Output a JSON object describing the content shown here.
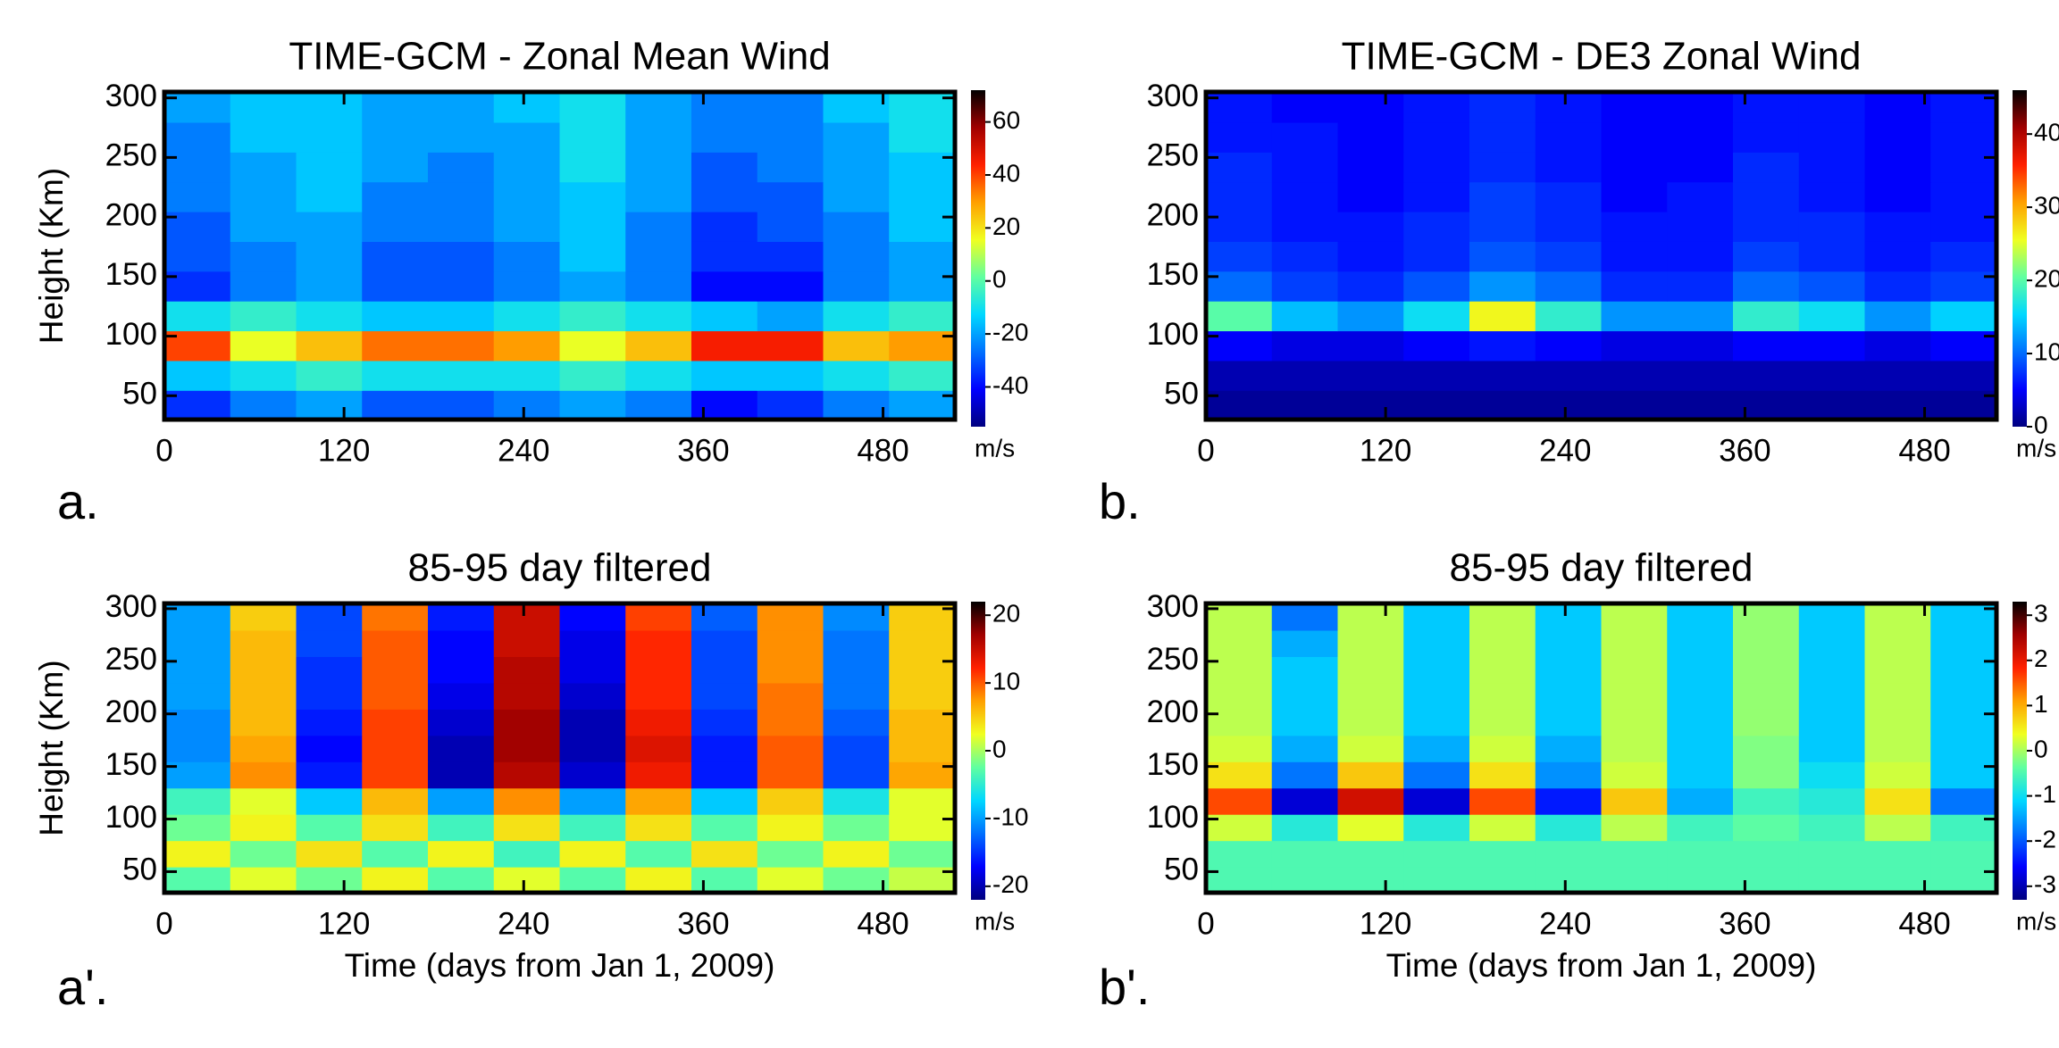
{
  "colormap": [
    "#00007f",
    "#0000ff",
    "#0070ff",
    "#00d8ff",
    "#60ffa0",
    "#f0ff20",
    "#ffa000",
    "#ff2000",
    "#a00000",
    "#000000"
  ],
  "chart_data": [
    {
      "type": "heatmap",
      "title": "TIME-GCM - Zonal Mean Wind",
      "panel_label": "a.",
      "ylabel": "Height (Km)",
      "colorbar_label": "m/s",
      "x": [
        22,
        66,
        110,
        154,
        198,
        242,
        286,
        330,
        374,
        418,
        462,
        506
      ],
      "y": [
        42,
        67,
        92,
        117,
        142,
        167,
        192,
        217,
        242,
        267,
        292
      ],
      "z": [
        [
          -35,
          -25,
          -20,
          -30,
          -30,
          -25,
          -20,
          -25,
          -40,
          -35,
          -25,
          -20
        ],
        [
          -15,
          -10,
          -5,
          -10,
          -10,
          -10,
          -5,
          -10,
          -15,
          -15,
          -10,
          -5
        ],
        [
          40,
          15,
          25,
          35,
          35,
          30,
          15,
          25,
          45,
          45,
          25,
          30
        ],
        [
          -10,
          -5,
          -10,
          -15,
          -15,
          -10,
          -5,
          -10,
          -15,
          -20,
          -10,
          -5
        ],
        [
          -35,
          -25,
          -20,
          -30,
          -30,
          -25,
          -20,
          -25,
          -40,
          -40,
          -25,
          -20
        ],
        [
          -30,
          -25,
          -20,
          -30,
          -30,
          -25,
          -15,
          -25,
          -35,
          -35,
          -25,
          -20
        ],
        [
          -30,
          -20,
          -20,
          -25,
          -25,
          -20,
          -15,
          -25,
          -35,
          -30,
          -25,
          -15
        ],
        [
          -25,
          -20,
          -15,
          -25,
          -25,
          -20,
          -15,
          -20,
          -30,
          -30,
          -20,
          -15
        ],
        [
          -25,
          -20,
          -15,
          -20,
          -25,
          -20,
          -10,
          -20,
          -30,
          -25,
          -20,
          -15
        ],
        [
          -25,
          -15,
          -15,
          -20,
          -20,
          -20,
          -10,
          -20,
          -25,
          -25,
          -20,
          -10
        ],
        [
          -20,
          -15,
          -15,
          -20,
          -20,
          -15,
          -10,
          -20,
          -25,
          -25,
          -15,
          -10
        ]
      ],
      "xlim": [
        0,
        528
      ],
      "ylim": [
        30,
        305
      ],
      "xticks": [
        0,
        120,
        240,
        360,
        480
      ],
      "yticks": [
        50,
        100,
        150,
        200,
        250,
        300
      ],
      "zlim": [
        -55,
        72
      ],
      "zticks": [
        60,
        40,
        20,
        0,
        -20,
        -40
      ]
    },
    {
      "type": "heatmap",
      "title": "TIME-GCM - DE3 Zonal Wind",
      "panel_label": "b.",
      "colorbar_label": "m/s",
      "x": [
        22,
        66,
        110,
        154,
        198,
        242,
        286,
        330,
        374,
        418,
        462,
        506
      ],
      "y": [
        42,
        67,
        92,
        117,
        142,
        167,
        192,
        217,
        242,
        267,
        292
      ],
      "z": [
        [
          1,
          1,
          1,
          1,
          1,
          1,
          1,
          1,
          1,
          1,
          1,
          1
        ],
        [
          2,
          2,
          2,
          2,
          2,
          2,
          2,
          2,
          2,
          2,
          2,
          2
        ],
        [
          5,
          4,
          4,
          5,
          6,
          5,
          4,
          4,
          5,
          5,
          4,
          5
        ],
        [
          20,
          14,
          12,
          16,
          26,
          18,
          12,
          12,
          18,
          16,
          12,
          15
        ],
        [
          10,
          8,
          7,
          9,
          12,
          10,
          7,
          7,
          10,
          9,
          7,
          8
        ],
        [
          8,
          7,
          6,
          7,
          9,
          8,
          6,
          6,
          8,
          7,
          6,
          7
        ],
        [
          7,
          6,
          6,
          7,
          8,
          7,
          6,
          6,
          7,
          7,
          6,
          6
        ],
        [
          7,
          6,
          5,
          6,
          8,
          7,
          5,
          6,
          7,
          6,
          5,
          6
        ],
        [
          7,
          6,
          5,
          6,
          7,
          6,
          5,
          5,
          7,
          6,
          5,
          6
        ],
        [
          6,
          6,
          5,
          6,
          7,
          6,
          5,
          5,
          6,
          6,
          5,
          6
        ],
        [
          6,
          5,
          5,
          6,
          7,
          6,
          5,
          5,
          6,
          6,
          5,
          6
        ]
      ],
      "xlim": [
        0,
        528
      ],
      "ylim": [
        30,
        305
      ],
      "xticks": [
        0,
        120,
        240,
        360,
        480
      ],
      "yticks": [
        50,
        100,
        150,
        200,
        250,
        300
      ],
      "zlim": [
        0,
        46
      ],
      "zticks": [
        40,
        30,
        20,
        10,
        0
      ]
    },
    {
      "type": "heatmap",
      "title": "85-95 day filtered",
      "panel_label": "a'.",
      "ylabel": "Height (Km)",
      "xlabel": "Time (days from Jan 1, 2009)",
      "colorbar_label": "m/s",
      "x": [
        22,
        66,
        110,
        154,
        198,
        242,
        286,
        330,
        374,
        418,
        462,
        506
      ],
      "y": [
        42,
        67,
        92,
        117,
        142,
        167,
        192,
        217,
        242,
        267,
        292
      ],
      "z": [
        [
          -3,
          2,
          -2,
          3,
          -3,
          2,
          -3,
          3,
          -3,
          2,
          -2,
          1
        ],
        [
          3,
          -2,
          4,
          -3,
          3,
          -4,
          3,
          -3,
          4,
          -2,
          3,
          -2
        ],
        [
          -2,
          3,
          -3,
          4,
          -4,
          4,
          -4,
          4,
          -3,
          3,
          -2,
          2
        ],
        [
          -4,
          2,
          -8,
          6,
          -10,
          8,
          -10,
          7,
          -8,
          5,
          -6,
          2
        ],
        [
          -10,
          8,
          -16,
          11,
          -20,
          16,
          -19,
          13,
          -16,
          10,
          -14,
          7
        ],
        [
          -11,
          7,
          -17,
          11,
          -20,
          17,
          -20,
          14,
          -16,
          10,
          -14,
          6
        ],
        [
          -11,
          6,
          -16,
          11,
          -19,
          17,
          -20,
          13,
          -15,
          9,
          -13,
          6
        ],
        [
          -10,
          6,
          -15,
          10,
          -18,
          16,
          -19,
          12,
          -14,
          9,
          -12,
          5
        ],
        [
          -10,
          6,
          -15,
          10,
          -17,
          16,
          -18,
          12,
          -14,
          8,
          -12,
          5
        ],
        [
          -10,
          6,
          -14,
          10,
          -17,
          15,
          -18,
          12,
          -14,
          8,
          -12,
          5
        ],
        [
          -10,
          5,
          -14,
          9,
          -16,
          15,
          -17,
          11,
          -13,
          8,
          -11,
          5
        ]
      ],
      "xlim": [
        0,
        528
      ],
      "ylim": [
        30,
        305
      ],
      "xticks": [
        0,
        120,
        240,
        360,
        480
      ],
      "yticks": [
        50,
        100,
        150,
        200,
        250,
        300
      ],
      "zlim": [
        -22,
        22
      ],
      "zticks": [
        20,
        10,
        0,
        -10,
        -20
      ]
    },
    {
      "type": "heatmap",
      "title": "85-95 day filtered",
      "panel_label": "b'.",
      "xlabel": "Time (days from Jan 1, 2009)",
      "colorbar_label": "m/s",
      "x": [
        22,
        66,
        110,
        154,
        198,
        242,
        286,
        330,
        374,
        418,
        462,
        506
      ],
      "y": [
        42,
        67,
        92,
        117,
        142,
        167,
        192,
        217,
        242,
        267,
        292
      ],
      "z": [
        [
          -0.5,
          -0.5,
          -0.5,
          -0.5,
          -0.5,
          -0.5,
          -0.5,
          -0.5,
          -0.5,
          -0.5,
          -0.5,
          -0.5
        ],
        [
          -0.5,
          -0.5,
          -0.5,
          -0.5,
          -0.5,
          -0.5,
          -0.5,
          -0.5,
          -0.5,
          -0.5,
          -0.5,
          -0.5
        ],
        [
          0.2,
          -0.8,
          0.3,
          -0.8,
          0.2,
          -0.8,
          0.1,
          -0.6,
          -0.4,
          -0.6,
          0.1,
          -0.6
        ],
        [
          1.6,
          -2.8,
          2.2,
          -2.8,
          1.6,
          -2.4,
          0.8,
          -1.4,
          -0.6,
          -0.8,
          0.6,
          -1.8
        ],
        [
          0.6,
          -1.8,
          0.8,
          -1.8,
          0.6,
          -1.6,
          0.2,
          -1.2,
          -0.2,
          -1.0,
          0.2,
          -1.2
        ],
        [
          0.2,
          -1.4,
          0.2,
          -1.4,
          0.2,
          -1.4,
          0.1,
          -1.2,
          -0.2,
          -1.2,
          0.1,
          -1.2
        ],
        [
          0.1,
          -1.2,
          0.1,
          -1.2,
          0.1,
          -1.2,
          0.1,
          -1.2,
          -0.1,
          -1.2,
          0.1,
          -1.2
        ],
        [
          0.1,
          -1.2,
          0.1,
          -1.2,
          0.1,
          -1.2,
          0.1,
          -1.2,
          -0.1,
          -1.2,
          0.1,
          -1.2
        ],
        [
          0.1,
          -1.2,
          0.1,
          -1.2,
          0.1,
          -1.2,
          0.1,
          -1.2,
          -0.1,
          -1.2,
          0.1,
          -1.2
        ],
        [
          0.1,
          -1.4,
          0.1,
          -1.2,
          0.1,
          -1.2,
          0.1,
          -1.2,
          -0.1,
          -1.2,
          0.1,
          -1.2
        ],
        [
          0.1,
          -1.8,
          0.1,
          -1.2,
          0.1,
          -1.2,
          0.1,
          -1.2,
          -0.1,
          -1.2,
          0.1,
          -1.2
        ]
      ],
      "xlim": [
        0,
        528
      ],
      "ylim": [
        30,
        305
      ],
      "xticks": [
        0,
        120,
        240,
        360,
        480
      ],
      "yticks": [
        50,
        100,
        150,
        200,
        250,
        300
      ],
      "zlim": [
        -3.3,
        3.3
      ],
      "zticks": [
        3,
        2,
        1,
        0,
        -1,
        -2,
        -3
      ]
    }
  ]
}
